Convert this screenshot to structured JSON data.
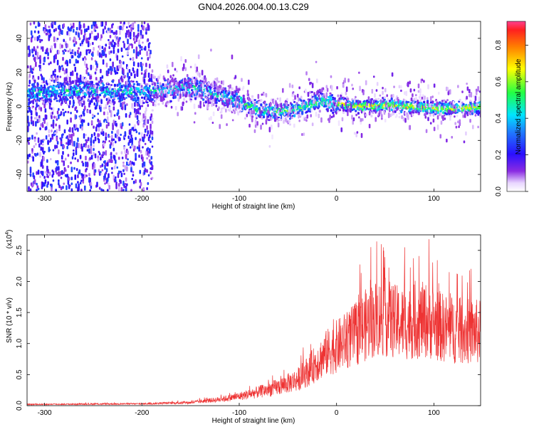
{
  "title": "GN04.2026.004.00.13.C29",
  "chart_data": [
    {
      "type": "heatmap",
      "xlabel": "Height of straight line (km)",
      "ylabel": "Frequency (Hz)",
      "xlim": [
        -318,
        148
      ],
      "ylim": [
        -50,
        50
      ],
      "xticks": [
        -300,
        -200,
        -100,
        0,
        100
      ],
      "yticks": [
        -40,
        -20,
        0,
        20,
        40
      ],
      "colorbar": {
        "label": "Normalized spectral amplitude",
        "range": [
          0,
          0.93
        ],
        "ticks": [
          0.0,
          0.2,
          0.4,
          0.6,
          0.8
        ],
        "colormap": "rainbow (white-purple-blue-cyan-green-yellow-red)"
      },
      "ridge": {
        "description": "dominant frequency track vs height",
        "x": [
          -318,
          -250,
          -200,
          -150,
          -130,
          -100,
          -80,
          -60,
          -40,
          -20,
          0,
          20,
          50,
          80,
          110,
          148
        ],
        "y": [
          8,
          10,
          8,
          12,
          8,
          3,
          -2,
          -3,
          -1,
          3,
          2,
          0,
          1,
          0,
          -1,
          0
        ]
      }
    },
    {
      "type": "line",
      "xlabel": "Height of straight line (km)",
      "ylabel": "SNR (10 * v/v)",
      "yscale_label": "(x10",
      "yscale_exp": "4",
      "xlim": [
        -318,
        148
      ],
      "ylim": [
        0,
        2.75
      ],
      "xticks": [
        -300,
        -200,
        -100,
        0,
        100
      ],
      "yticks": [
        0.0,
        0.5,
        1.0,
        1.5,
        2.0,
        2.5
      ],
      "color": "#ee3333",
      "envelope": {
        "x": [
          -318,
          -200,
          -150,
          -120,
          -100,
          -80,
          -60,
          -40,
          -30,
          -20,
          -10,
          0,
          10,
          20,
          30,
          40,
          50,
          60,
          70,
          80,
          90,
          100,
          110,
          120,
          130,
          148
        ],
        "y": [
          0.02,
          0.03,
          0.05,
          0.1,
          0.15,
          0.22,
          0.3,
          0.42,
          0.55,
          0.7,
          0.85,
          0.95,
          1.05,
          1.15,
          1.3,
          1.4,
          1.42,
          1.35,
          1.32,
          1.35,
          1.38,
          1.33,
          1.25,
          1.22,
          1.2,
          1.18
        ]
      },
      "peaks": [
        {
          "x": 95,
          "y": 2.68
        },
        {
          "x": 46,
          "y": 2.6
        },
        {
          "x": 70,
          "y": 2.55
        }
      ]
    }
  ]
}
